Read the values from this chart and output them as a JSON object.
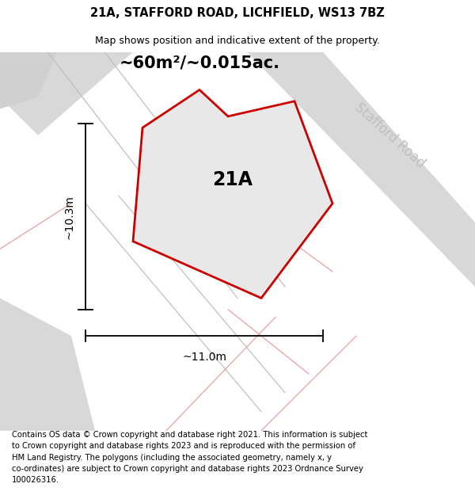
{
  "title": "21A, STAFFORD ROAD, LICHFIELD, WS13 7BZ",
  "subtitle": "Map shows position and indicative extent of the property.",
  "area_label": "~60m²/~0.015ac.",
  "label_21A": "21A",
  "dim_height": "~10.3m",
  "dim_width": "~11.0m",
  "road_label": "Stafford Road",
  "footer": "Contains OS data © Crown copyright and database right 2021. This information is subject\nto Crown copyright and database rights 2023 and is reproduced with the permission of\nHM Land Registry. The polygons (including the associated geometry, namely x, y\nco-ordinates) are subject to Crown copyright and database rights 2023 Ordnance Survey\n100026316.",
  "bg_color": "#ffffff",
  "map_bg": "#ffffff",
  "property_fill": "#e8e8e8",
  "property_edge": "#cc0000",
  "road_fill": "#d8d8d8",
  "pink_line_color": "#e8a0a8",
  "dim_line_color": "#111111",
  "title_fontsize": 10.5,
  "subtitle_fontsize": 9,
  "area_fontsize": 15,
  "label_fontsize": 17,
  "dim_fontsize": 10,
  "road_label_fontsize": 12,
  "footer_fontsize": 7.2
}
